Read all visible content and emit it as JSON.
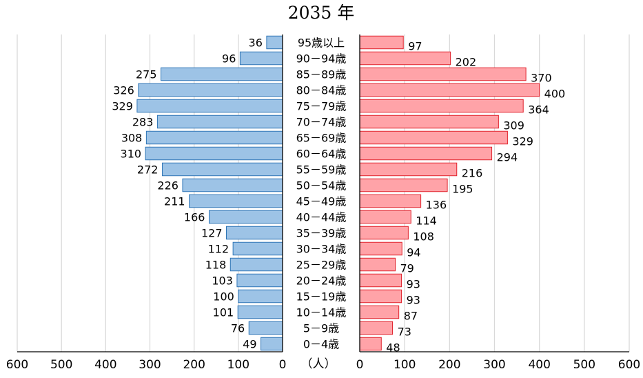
{
  "chart_data": {
    "type": "bar",
    "title": "2035 年",
    "unit_label": "（人）",
    "categories": [
      "0－4歳",
      "5－9歳",
      "10－14歳",
      "15－19歳",
      "20－24歳",
      "25－29歳",
      "30－34歳",
      "35－39歳",
      "40－44歳",
      "45－49歳",
      "50－54歳",
      "55－59歳",
      "60－64歳",
      "65－69歳",
      "70－74歳",
      "75－79歳",
      "80－84歳",
      "85－89歳",
      "90－94歳",
      "95歳以上"
    ],
    "series": [
      {
        "side": "left",
        "color": "#9dc3e6",
        "border": "#2e75b6",
        "values": [
          49,
          76,
          101,
          100,
          103,
          118,
          112,
          127,
          166,
          211,
          226,
          272,
          310,
          308,
          283,
          329,
          326,
          275,
          96,
          36
        ]
      },
      {
        "side": "right",
        "color": "#ffa3a8",
        "border": "#e0212b",
        "values": [
          48,
          73,
          87,
          93,
          93,
          79,
          94,
          108,
          114,
          136,
          195,
          216,
          294,
          329,
          309,
          364,
          400,
          370,
          202,
          97
        ]
      }
    ],
    "xlim": [
      0,
      600
    ],
    "ticks": [
      "600",
      "500",
      "400",
      "300",
      "200",
      "100",
      "0",
      "0",
      "100",
      "200",
      "300",
      "400",
      "500",
      "600"
    ],
    "grid": true
  }
}
